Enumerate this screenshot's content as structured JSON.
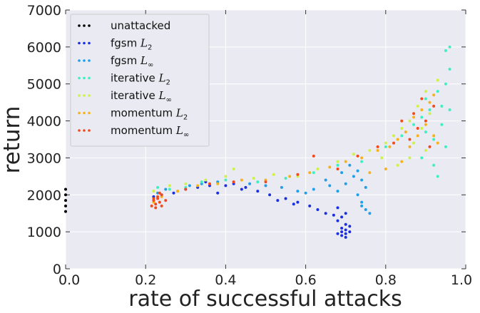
{
  "chart_data": {
    "type": "scatter",
    "title": "",
    "xlabel": "rate of successful attacks",
    "ylabel": "return",
    "xlim": [
      0.0,
      1.0
    ],
    "ylim": [
      0,
      7000
    ],
    "xticks": [
      "0.0",
      "0.2",
      "0.4",
      "0.6",
      "0.8",
      "1.0"
    ],
    "yticks": [
      "0",
      "1000",
      "2000",
      "3000",
      "4000",
      "5000",
      "6000",
      "7000"
    ],
    "grid": true,
    "legend_position": "top-left",
    "series": [
      {
        "name": "unattacked",
        "label_text": "unattacked",
        "label_math_base": "",
        "label_math_sub": "",
        "color": "#000000",
        "points": [
          [
            0.0,
            2150
          ],
          [
            0.0,
            2000
          ],
          [
            0.0,
            1850
          ],
          [
            0.0,
            1700
          ],
          [
            0.0,
            1550
          ]
        ]
      },
      {
        "name": "fgsm L2",
        "label_text": "fgsm ",
        "label_math_base": "L",
        "label_math_sub": "2",
        "color": "#1a2fe0",
        "points": [
          [
            0.22,
            1950
          ],
          [
            0.24,
            2000
          ],
          [
            0.27,
            2050
          ],
          [
            0.3,
            2150
          ],
          [
            0.33,
            2200
          ],
          [
            0.36,
            2250
          ],
          [
            0.4,
            2250
          ],
          [
            0.44,
            2150
          ],
          [
            0.48,
            2100
          ],
          [
            0.51,
            2000
          ],
          [
            0.55,
            1900
          ],
          [
            0.58,
            1800
          ],
          [
            0.61,
            1700
          ],
          [
            0.63,
            1600
          ],
          [
            0.65,
            1500
          ],
          [
            0.67,
            1450
          ],
          [
            0.68,
            1650
          ],
          [
            0.68,
            1300
          ],
          [
            0.69,
            1100
          ],
          [
            0.69,
            1000
          ],
          [
            0.69,
            900
          ],
          [
            0.7,
            1200
          ],
          [
            0.7,
            1050
          ],
          [
            0.7,
            950
          ],
          [
            0.7,
            850
          ],
          [
            0.71,
            1150
          ],
          [
            0.71,
            1000
          ],
          [
            0.68,
            950
          ],
          [
            0.69,
            1400
          ],
          [
            0.7,
            1500
          ],
          [
            0.53,
            1850
          ],
          [
            0.57,
            1750
          ],
          [
            0.45,
            2200
          ],
          [
            0.42,
            2300
          ],
          [
            0.38,
            2050
          ],
          [
            0.35,
            2350
          ]
        ]
      },
      {
        "name": "fgsm L∞",
        "label_text": "fgsm ",
        "label_math_base": "L",
        "label_math_sub": "∞",
        "color": "#1e9fe8",
        "points": [
          [
            0.23,
            2050
          ],
          [
            0.25,
            2150
          ],
          [
            0.28,
            2100
          ],
          [
            0.31,
            2250
          ],
          [
            0.34,
            2300
          ],
          [
            0.38,
            2350
          ],
          [
            0.42,
            2350
          ],
          [
            0.46,
            2300
          ],
          [
            0.5,
            2250
          ],
          [
            0.54,
            2200
          ],
          [
            0.58,
            2100
          ],
          [
            0.62,
            2150
          ],
          [
            0.66,
            2250
          ],
          [
            0.68,
            2100
          ],
          [
            0.7,
            2300
          ],
          [
            0.72,
            2500
          ],
          [
            0.73,
            2000
          ],
          [
            0.74,
            1800
          ],
          [
            0.74,
            2400
          ],
          [
            0.75,
            1600
          ],
          [
            0.75,
            2200
          ],
          [
            0.73,
            2650
          ],
          [
            0.71,
            2800
          ],
          [
            0.69,
            2600
          ],
          [
            0.76,
            1500
          ],
          [
            0.74,
            1700
          ],
          [
            0.65,
            2400
          ],
          [
            0.6,
            2050
          ]
        ]
      },
      {
        "name": "iterative L2",
        "label_text": "iterative ",
        "label_math_base": "L",
        "label_math_sub": "2",
        "color": "#3df0c2",
        "points": [
          [
            0.23,
            2200
          ],
          [
            0.26,
            2150
          ],
          [
            0.3,
            2200
          ],
          [
            0.34,
            2350
          ],
          [
            0.4,
            2400
          ],
          [
            0.48,
            2350
          ],
          [
            0.55,
            2450
          ],
          [
            0.62,
            2600
          ],
          [
            0.68,
            2800
          ],
          [
            0.74,
            2900
          ],
          [
            0.8,
            3300
          ],
          [
            0.84,
            3600
          ],
          [
            0.87,
            3900
          ],
          [
            0.89,
            4100
          ],
          [
            0.9,
            3700
          ],
          [
            0.91,
            4300
          ],
          [
            0.92,
            3500
          ],
          [
            0.92,
            2800
          ],
          [
            0.93,
            4800
          ],
          [
            0.94,
            4400
          ],
          [
            0.95,
            5000
          ],
          [
            0.95,
            3300
          ],
          [
            0.96,
            5400
          ],
          [
            0.96,
            4300
          ],
          [
            0.96,
            6000
          ],
          [
            0.95,
            5900
          ],
          [
            0.93,
            2500
          ],
          [
            0.94,
            3900
          ],
          [
            0.89,
            3000
          ],
          [
            0.9,
            4600
          ]
        ]
      },
      {
        "name": "iterative L∞",
        "label_text": "iterative ",
        "label_math_base": "L",
        "label_math_sub": "∞",
        "color": "#cdf24a",
        "points": [
          [
            0.22,
            2100
          ],
          [
            0.26,
            2250
          ],
          [
            0.3,
            2300
          ],
          [
            0.35,
            2400
          ],
          [
            0.4,
            2500
          ],
          [
            0.42,
            2700
          ],
          [
            0.47,
            2450
          ],
          [
            0.52,
            2550
          ],
          [
            0.58,
            2500
          ],
          [
            0.63,
            2700
          ],
          [
            0.68,
            2900
          ],
          [
            0.72,
            3100
          ],
          [
            0.76,
            3200
          ],
          [
            0.8,
            3400
          ],
          [
            0.82,
            3600
          ],
          [
            0.84,
            3800
          ],
          [
            0.86,
            4000
          ],
          [
            0.87,
            3400
          ],
          [
            0.88,
            4400
          ],
          [
            0.89,
            3800
          ],
          [
            0.9,
            4800
          ],
          [
            0.91,
            4200
          ],
          [
            0.92,
            3600
          ],
          [
            0.93,
            5100
          ],
          [
            0.9,
            3200
          ],
          [
            0.86,
            3000
          ],
          [
            0.83,
            2800
          ],
          [
            0.79,
            3000
          ]
        ]
      },
      {
        "name": "momentum L2",
        "label_text": "momentum ",
        "label_math_base": "L",
        "label_math_sub": "2",
        "color": "#f6b21c",
        "points": [
          [
            0.22,
            1800
          ],
          [
            0.24,
            1950
          ],
          [
            0.28,
            2100
          ],
          [
            0.33,
            2250
          ],
          [
            0.38,
            2300
          ],
          [
            0.44,
            2400
          ],
          [
            0.5,
            2400
          ],
          [
            0.56,
            2500
          ],
          [
            0.61,
            2600
          ],
          [
            0.66,
            2750
          ],
          [
            0.7,
            2900
          ],
          [
            0.74,
            3000
          ],
          [
            0.78,
            3200
          ],
          [
            0.81,
            3300
          ],
          [
            0.83,
            3500
          ],
          [
            0.85,
            3700
          ],
          [
            0.86,
            3300
          ],
          [
            0.87,
            4100
          ],
          [
            0.88,
            3600
          ],
          [
            0.89,
            4300
          ],
          [
            0.9,
            3900
          ],
          [
            0.91,
            4500
          ],
          [
            0.92,
            3600
          ],
          [
            0.92,
            4700
          ],
          [
            0.93,
            3400
          ],
          [
            0.84,
            2900
          ],
          [
            0.8,
            2700
          ],
          [
            0.76,
            2600
          ]
        ]
      },
      {
        "name": "momentum L∞",
        "label_text": "momentum ",
        "label_math_base": "L",
        "label_math_sub": "∞",
        "color": "#f24a1e",
        "points": [
          [
            0.215,
            1700
          ],
          [
            0.22,
            1850
          ],
          [
            0.225,
            1750
          ],
          [
            0.23,
            1950
          ],
          [
            0.235,
            1800
          ],
          [
            0.24,
            2000
          ],
          [
            0.225,
            1650
          ],
          [
            0.23,
            1900
          ],
          [
            0.24,
            1700
          ],
          [
            0.25,
            1850
          ],
          [
            0.22,
            1900
          ],
          [
            0.235,
            2050
          ],
          [
            0.3,
            2150
          ],
          [
            0.36,
            2300
          ],
          [
            0.42,
            2350
          ],
          [
            0.5,
            2350
          ],
          [
            0.58,
            2550
          ],
          [
            0.62,
            3050
          ],
          [
            0.68,
            2700
          ],
          [
            0.73,
            3050
          ],
          [
            0.78,
            3300
          ],
          [
            0.82,
            3400
          ],
          [
            0.84,
            4000
          ],
          [
            0.86,
            3500
          ],
          [
            0.87,
            4200
          ],
          [
            0.88,
            3800
          ],
          [
            0.89,
            4600
          ],
          [
            0.9,
            4000
          ],
          [
            0.91,
            3300
          ],
          [
            0.92,
            4400
          ]
        ]
      }
    ]
  }
}
